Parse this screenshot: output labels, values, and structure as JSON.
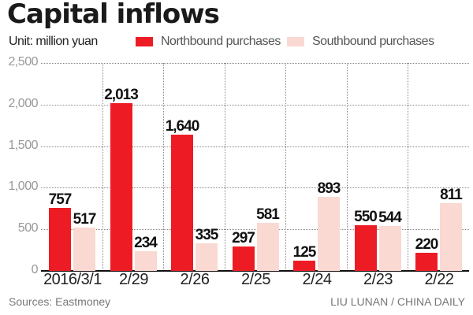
{
  "header": {
    "title": "Capital inflows",
    "unit": "Unit: million yuan"
  },
  "legend": [
    {
      "label": "Northbound purchases",
      "color": "#ed1c24"
    },
    {
      "label": "Southbound purchases",
      "color": "#f9d9d2"
    }
  ],
  "footer": {
    "source": "Sources: Eastmoney",
    "credit": "LIU LUNAN / CHINA DAILY"
  },
  "yticks": [
    "2,500",
    "2,000",
    "1,500",
    "1,000",
    "500",
    "0"
  ],
  "chart_data": {
    "type": "bar",
    "title": "Capital inflows",
    "subtitle": "Unit: million yuan",
    "xlabel": "",
    "ylabel": "million yuan",
    "ylim": [
      0,
      2500
    ],
    "yticks": [
      0,
      500,
      1000,
      1500,
      2000,
      2500
    ],
    "grid": true,
    "legend_position": "top",
    "categories": [
      "2016/3/1",
      "2/29",
      "2/26",
      "2/25",
      "2/24",
      "2/23",
      "2/22"
    ],
    "series": [
      {
        "name": "Northbound purchases",
        "color": "#ed1c24",
        "values": [
          757,
          2013,
          1640,
          297,
          125,
          550,
          220
        ],
        "labels": [
          "757",
          "2,013",
          "1,640",
          "297",
          "125",
          "550",
          "220"
        ]
      },
      {
        "name": "Southbound purchases",
        "color": "#f9d9d2",
        "values": [
          517,
          234,
          335,
          581,
          893,
          544,
          811
        ],
        "labels": [
          "517",
          "234",
          "335",
          "581",
          "893",
          "544",
          "811"
        ]
      }
    ],
    "source": "Sources: Eastmoney",
    "credit": "LIU LUNAN / CHINA DAILY"
  }
}
